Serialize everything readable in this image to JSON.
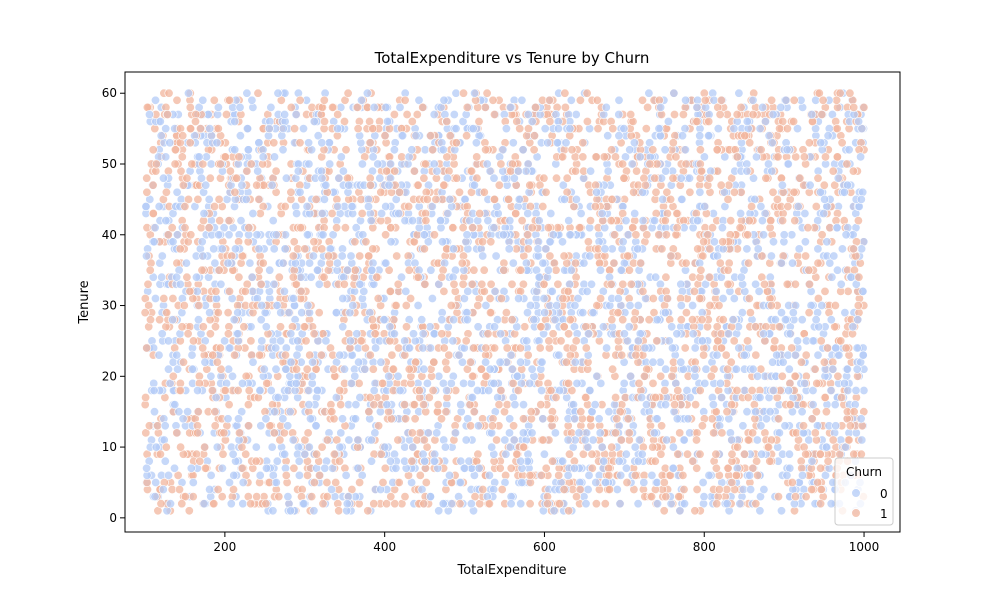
{
  "chart_data": {
    "type": "scatter",
    "title": "TotalExpenditure vs Tenure by Churn",
    "xlabel": "TotalExpenditure",
    "ylabel": "Tenure",
    "xlim": [
      75,
      1045
    ],
    "ylim": [
      -2,
      63
    ],
    "x_ticks": [
      200,
      400,
      600,
      800,
      1000
    ],
    "y_ticks": [
      0,
      10,
      20,
      30,
      40,
      50,
      60
    ],
    "grid": false,
    "legend": {
      "title": "Churn",
      "placement": "lower-right"
    },
    "series": [
      {
        "name": "0",
        "color": "#b3cbf7",
        "edge_color": "#ffffff",
        "opacity": 0.75,
        "x_range": [
          100,
          1000
        ],
        "y_range": [
          1,
          60
        ],
        "point_count": 2500
      },
      {
        "name": "1",
        "color": "#f2b59d",
        "edge_color": "#ffffff",
        "opacity": 0.75,
        "x_range": [
          100,
          1000
        ],
        "y_range": [
          1,
          60
        ],
        "point_count": 2500
      }
    ]
  }
}
